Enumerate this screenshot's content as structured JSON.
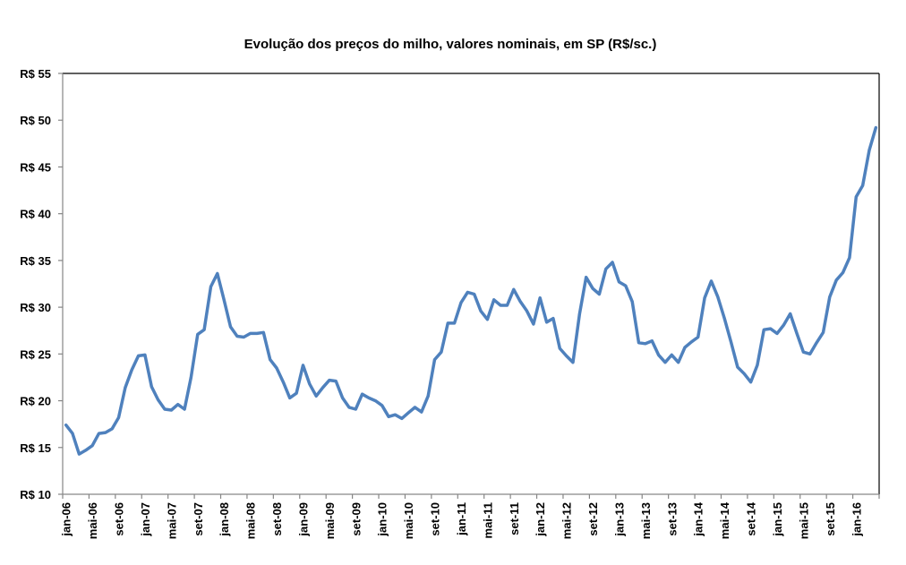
{
  "chart_data": {
    "type": "line",
    "title": "Evolução dos preços do milho, valores nominais, em SP (R$/sc.)",
    "xlabel": "",
    "ylabel": "",
    "ylim": [
      10,
      55
    ],
    "y_ticks": [
      10,
      15,
      20,
      25,
      30,
      35,
      40,
      45,
      50,
      55
    ],
    "y_tick_labels": [
      "R$ 10",
      "R$ 15",
      "R$ 20",
      "R$ 25",
      "R$ 30",
      "R$ 35",
      "R$ 40",
      "R$ 45",
      "R$ 50",
      "R$ 55"
    ],
    "x_start": "jan-06",
    "x_end": "apr-16",
    "x_tick_labels": [
      "jan-06",
      "mai-06",
      "set-06",
      "jan-07",
      "mai-07",
      "set-07",
      "jan-08",
      "mai-08",
      "set-08",
      "jan-09",
      "mai-09",
      "set-09",
      "jan-10",
      "mai-10",
      "set-10",
      "jan-11",
      "mai-11",
      "set-11",
      "jan-12",
      "mai-12",
      "set-12",
      "jan-13",
      "mai-13",
      "set-13",
      "jan-14",
      "mai-14",
      "set-14",
      "jan-15",
      "mai-15",
      "set-15",
      "jan-16"
    ],
    "x_tick_interval_months": 4,
    "grid": false,
    "legend": "none",
    "series": [
      {
        "name": "Preço do milho (R$/sc.)",
        "color": "#4F81BD",
        "values": [
          17.4,
          16.5,
          14.3,
          14.7,
          15.2,
          16.5,
          16.6,
          17.0,
          18.2,
          21.4,
          23.3,
          24.8,
          24.9,
          21.5,
          20.1,
          19.1,
          19.0,
          19.6,
          19.1,
          22.5,
          27.1,
          27.6,
          32.2,
          33.6,
          30.8,
          27.9,
          26.9,
          26.8,
          27.2,
          27.2,
          27.3,
          24.4,
          23.5,
          22.0,
          20.3,
          20.8,
          23.8,
          21.8,
          20.5,
          21.4,
          22.2,
          22.1,
          20.3,
          19.3,
          19.1,
          20.7,
          20.3,
          20.0,
          19.5,
          18.3,
          18.5,
          18.1,
          18.7,
          19.3,
          18.8,
          20.5,
          24.4,
          25.2,
          28.3,
          28.3,
          30.5,
          31.6,
          31.4,
          29.6,
          28.7,
          30.8,
          30.2,
          30.2,
          31.9,
          30.6,
          29.6,
          28.2,
          31.0,
          28.4,
          28.8,
          25.6,
          24.8,
          24.1,
          29.3,
          33.2,
          32.0,
          31.4,
          34.1,
          34.8,
          32.7,
          32.3,
          30.6,
          26.2,
          26.1,
          26.4,
          24.9,
          24.1,
          24.9,
          24.1,
          25.7,
          26.3,
          26.8,
          31.0,
          32.8,
          31.1,
          28.8,
          26.3,
          23.6,
          22.9,
          22.0,
          23.8,
          27.6,
          27.7,
          27.2,
          28.1,
          29.3,
          27.2,
          25.2,
          25.0,
          26.2,
          27.3,
          31.1,
          32.9,
          33.7,
          35.3,
          41.8,
          43.0,
          46.8,
          49.2
        ]
      }
    ]
  }
}
